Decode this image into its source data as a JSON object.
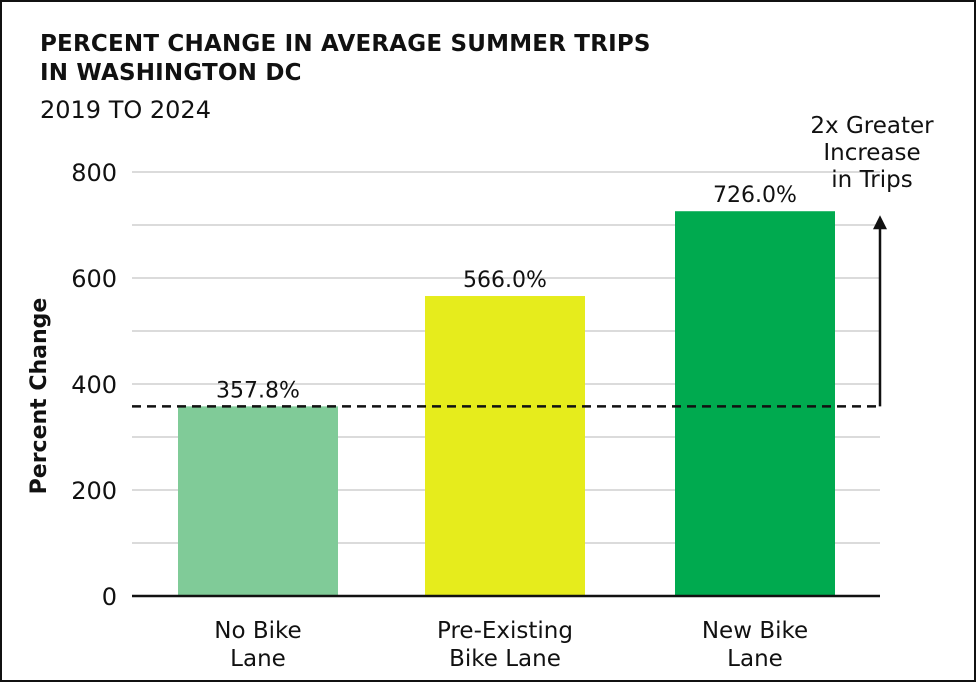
{
  "chart_data": {
    "type": "bar",
    "title": "PERCENT CHANGE IN AVERAGE SUMMER TRIPS IN WASHINGTON DC",
    "title_lines": [
      "PERCENT CHANGE IN AVERAGE SUMMER TRIPS",
      "IN WASHINGTON DC"
    ],
    "subtitle": "2019 TO 2024",
    "xlabel": "",
    "ylabel": "Percent Change",
    "ylim": [
      0,
      800
    ],
    "yticks": [
      0,
      200,
      400,
      600,
      800
    ],
    "grid": true,
    "grid_step": 100,
    "categories": [
      "No Bike Lane",
      "Pre-Existing Bike Lane",
      "New Bike Lane"
    ],
    "category_lines": [
      [
        "No Bike",
        "Lane"
      ],
      [
        "Pre-Existing",
        "Bike Lane"
      ],
      [
        "New Bike",
        "Lane"
      ]
    ],
    "values": [
      357.8,
      566.0,
      726.0
    ],
    "data_labels": [
      "357.8%",
      "566.0%",
      "726.0%"
    ],
    "colors": [
      "#80cb98",
      "#e6ec1c",
      "#00aa4f"
    ],
    "reference_line": {
      "value": 357.8,
      "style": "dashed"
    },
    "annotation": {
      "lines": [
        "2x Greater",
        "Increase",
        "in Trips"
      ],
      "arrow_from": 357.8,
      "arrow_to": 726.0
    }
  }
}
